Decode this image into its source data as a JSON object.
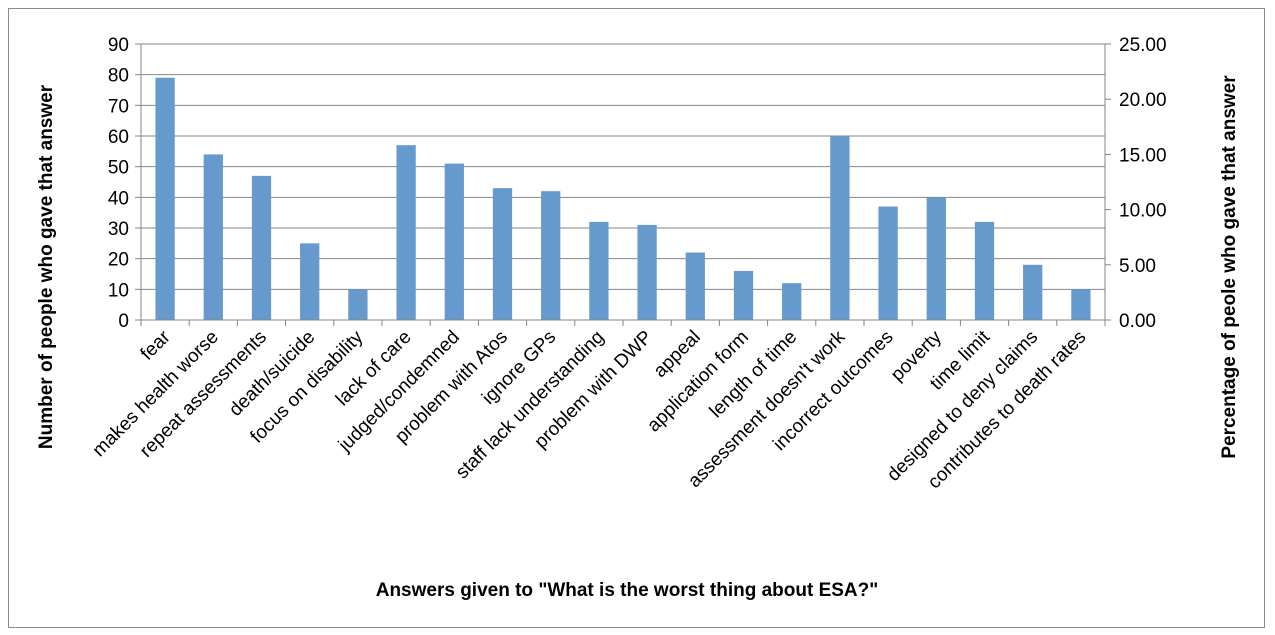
{
  "chart_data": {
    "type": "bar",
    "categories": [
      "fear",
      "makes health worse",
      "repeat assessments",
      "death/suicide",
      "focus on disability",
      "lack of care",
      "judged/condemned",
      "problem with Atos",
      "ignore GPs",
      "staff lack understanding",
      "problem with DWP",
      "appeal",
      "application form",
      "length of time",
      "assessment doesn't work",
      "incorrect outcomes",
      "poverty",
      "time limit",
      "designed to deny claims",
      "contributes to death rates"
    ],
    "series": [
      {
        "values": [
          79,
          54,
          47,
          25,
          10,
          57,
          51,
          43,
          42,
          32,
          31,
          22,
          16,
          12,
          60,
          37,
          40,
          32,
          18,
          10
        ]
      }
    ],
    "xlabel": "Answers given to \"What is the worst thing about ESA?\"",
    "ylabel": "Number of people who gave that answer",
    "y2label": "Percentage of peole who gave that answer",
    "ylim": [
      0,
      90
    ],
    "y_ticks": [
      "0",
      "10",
      "20",
      "30",
      "40",
      "50",
      "60",
      "70",
      "80",
      "90"
    ],
    "y2lim": [
      0,
      25
    ],
    "y2_ticks": [
      "0.00",
      "5.00",
      "10.00",
      "15.00",
      "20.00",
      "25.00"
    ],
    "grid": true,
    "bar_color": "#6699cc",
    "grid_color": "#868686"
  }
}
